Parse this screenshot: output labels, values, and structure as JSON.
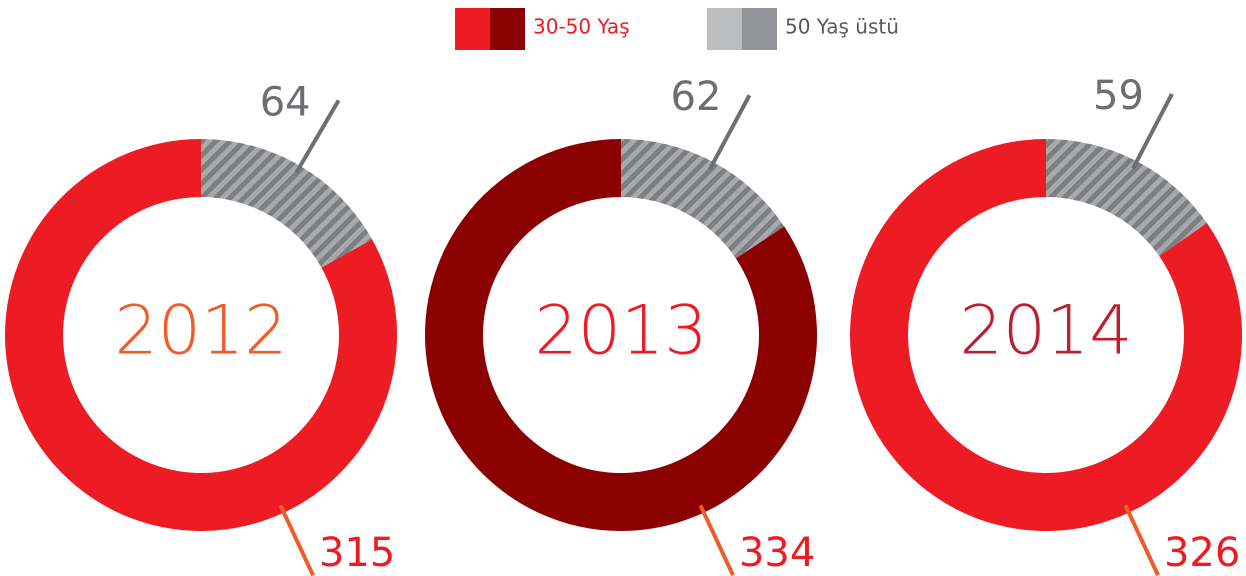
{
  "legend": [
    {
      "label": "30-50 Yaş",
      "colors": [
        "#ed1c24",
        "#8b0000"
      ],
      "text_color": "#ed1c24"
    },
    {
      "label": "50 Yaş üstü",
      "colors": [
        "#bcbec0",
        "#939598"
      ],
      "text_color": "#58595b"
    }
  ],
  "chart_data": [
    {
      "type": "pie",
      "title": "2012",
      "title_color": "#f15a29",
      "values": [
        315,
        64
      ],
      "colors": [
        "#ed1c24",
        "#a7a9ac"
      ],
      "label_colors": [
        "#ed1c24",
        "#6d6e71"
      ]
    },
    {
      "type": "pie",
      "title": "2013",
      "title_color": "#ed1c24",
      "values": [
        334,
        62
      ],
      "colors": [
        "#8b0000",
        "#a7a9ac"
      ],
      "label_colors": [
        "#ed1c24",
        "#6d6e71"
      ]
    },
    {
      "type": "pie",
      "title": "2014",
      "title_color": "#be1e2d",
      "values": [
        326,
        59
      ],
      "colors": [
        "#ed1c24",
        "#a7a9ac"
      ],
      "label_colors": [
        "#ed1c24",
        "#6d6e71"
      ]
    }
  ]
}
